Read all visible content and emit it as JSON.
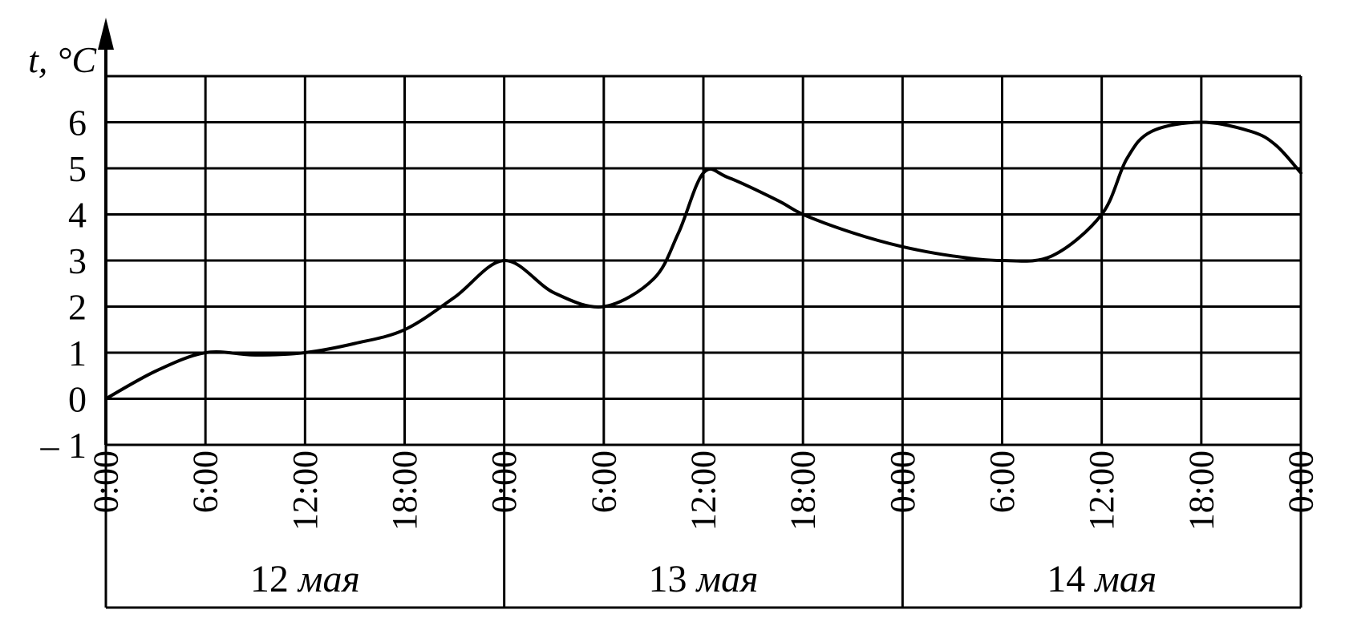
{
  "chart_data": {
    "type": "line",
    "ylabel": "t, °C",
    "ylim": [
      -1,
      7
    ],
    "yticks": [
      "6",
      "5",
      "4",
      "3",
      "2",
      "1",
      "0",
      "– 1"
    ],
    "xticks": [
      "0:00",
      "6:00",
      "12:00",
      "18:00",
      "0:00",
      "6:00",
      "12:00",
      "18:00",
      "0:00",
      "6:00",
      "12:00",
      "18:00",
      "0:00"
    ],
    "xlim_hours": [
      0,
      72
    ],
    "grid": true,
    "days": [
      {
        "num": "12",
        "word": "мая"
      },
      {
        "num": "13",
        "word": "мая"
      },
      {
        "num": "14",
        "word": "мая"
      }
    ],
    "series": [
      {
        "x": [
          0,
          3,
          6,
          9,
          12,
          15,
          18,
          21,
          24,
          27,
          30,
          33,
          34.5,
          36,
          37.5,
          40.5,
          42,
          45,
          48,
          51,
          54,
          57,
          60,
          61.5,
          63,
          66,
          69,
          70.5,
          72
        ],
        "y": [
          0,
          0.6,
          1.0,
          0.95,
          1.0,
          1.2,
          1.5,
          2.2,
          3.0,
          2.3,
          2.0,
          2.6,
          3.6,
          4.9,
          4.8,
          4.3,
          4.0,
          3.6,
          3.3,
          3.1,
          3.0,
          3.1,
          4.0,
          5.2,
          5.8,
          6.0,
          5.8,
          5.5,
          4.9
        ]
      }
    ]
  }
}
